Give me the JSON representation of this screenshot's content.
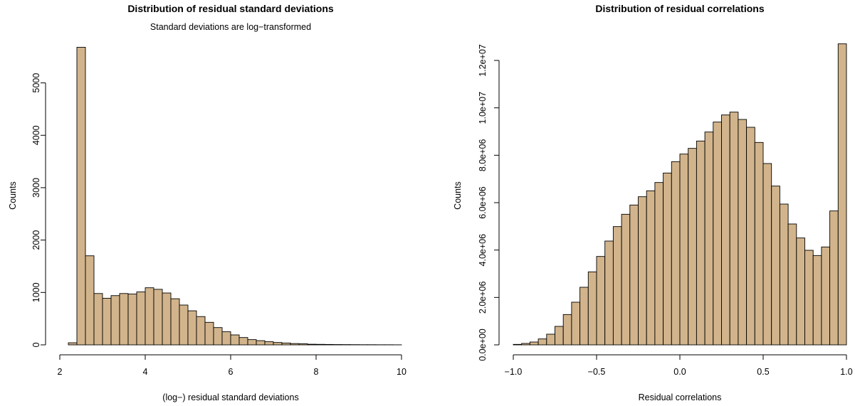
{
  "chart_data": [
    {
      "type": "bar",
      "title": "Distribution of residual standard deviations",
      "subtitle": "Standard deviations are log−transformed",
      "xlabel": "(log−) residual standard deviations",
      "ylabel": "Counts",
      "xlim": [
        2,
        10
      ],
      "ylim": [
        0,
        5700
      ],
      "xticks": [
        "2",
        "4",
        "6",
        "8",
        "10"
      ],
      "yticks": [
        "0",
        "1000",
        "2000",
        "3000",
        "4000",
        "5000"
      ],
      "bin_width": 0.2,
      "bin_start": 2.2,
      "values": [
        40,
        5680,
        1700,
        980,
        890,
        940,
        980,
        970,
        1010,
        1090,
        1060,
        990,
        880,
        760,
        650,
        540,
        430,
        330,
        250,
        190,
        140,
        100,
        80,
        60,
        45,
        35,
        25,
        20,
        12,
        10,
        8,
        6,
        5,
        4,
        3,
        3,
        2,
        2,
        1
      ],
      "bar_color": "#d2b48c"
    },
    {
      "type": "bar",
      "title": "Distribution of residual correlations",
      "xlabel": "Residual correlations",
      "ylabel": "Counts",
      "xlim": [
        -1,
        1
      ],
      "ylim": [
        0,
        12600000
      ],
      "xticks": [
        "−1.0",
        "−0.5",
        "0.0",
        "0.5",
        "1.0"
      ],
      "yticks": [
        "0.0e+00",
        "2.0e+06",
        "4.0e+06",
        "6.0e+06",
        "8.0e+06",
        "1.0e+07",
        "1.2e+07"
      ],
      "bin_width": 0.05,
      "bin_start": -1.0,
      "values": [
        20000,
        60000,
        120000,
        250000,
        450000,
        780000,
        1280000,
        1800000,
        2430000,
        3080000,
        3730000,
        4380000,
        4990000,
        5510000,
        5900000,
        6250000,
        6500000,
        6850000,
        7250000,
        7730000,
        8050000,
        8290000,
        8600000,
        8980000,
        9400000,
        9700000,
        9820000,
        9510000,
        9180000,
        8540000,
        7650000,
        6700000,
        5940000,
        5100000,
        4510000,
        3990000,
        3770000,
        4130000,
        5650000,
        12700000
      ],
      "bar_color": "#d2b48c"
    }
  ]
}
